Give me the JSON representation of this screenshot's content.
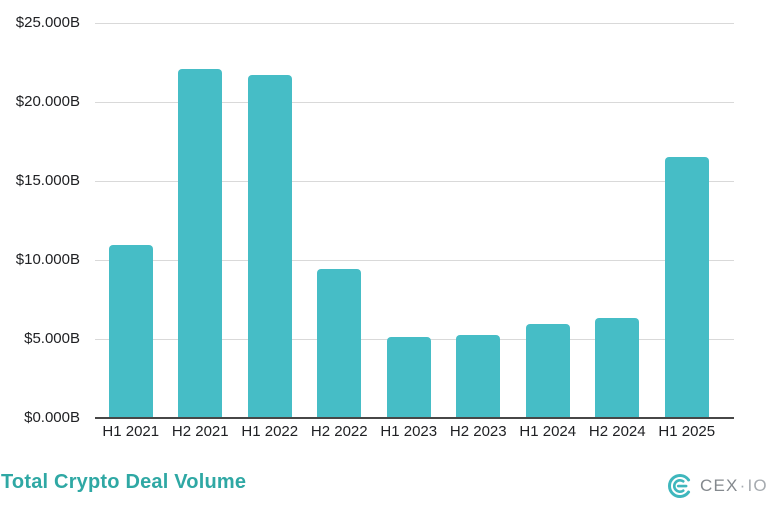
{
  "chart_data": {
    "type": "bar",
    "title": "Total Crypto Deal Volume",
    "categories": [
      "H1 2021",
      "H2 2021",
      "H1 2022",
      "H2 2022",
      "H1 2023",
      "H2 2023",
      "H1 2024",
      "H2 2024",
      "H1 2025"
    ],
    "values": [
      10.9,
      22.1,
      21.7,
      9.4,
      5.1,
      5.2,
      5.9,
      6.3,
      16.5
    ],
    "value_unit": "$B",
    "xlabel": "",
    "ylabel": "",
    "ylim": [
      0,
      25
    ],
    "yticks": [
      0,
      5,
      10,
      15,
      20,
      25
    ],
    "ytick_labels": [
      "$0.000B",
      "$5.000B",
      "$10.000B",
      "$15.000B",
      "$20.000B",
      "$25.000B"
    ],
    "grid": true,
    "legend": "none",
    "bar_color": "#46BDC6"
  },
  "footer": {
    "title": "Total Crypto Deal Volume",
    "logo": {
      "cex": "CEX",
      "separator": "·",
      "io": "IO"
    }
  },
  "colors": {
    "bar": "#46BDC6",
    "title_text": "#2FA8A4",
    "axis_text": "#202124",
    "gridline": "#D9D9D9",
    "axis_line": "#474747",
    "logo_mark": "#3FB7BD",
    "logo_text_cex": "#84898E",
    "logo_text_io": "#A6ABB0"
  }
}
